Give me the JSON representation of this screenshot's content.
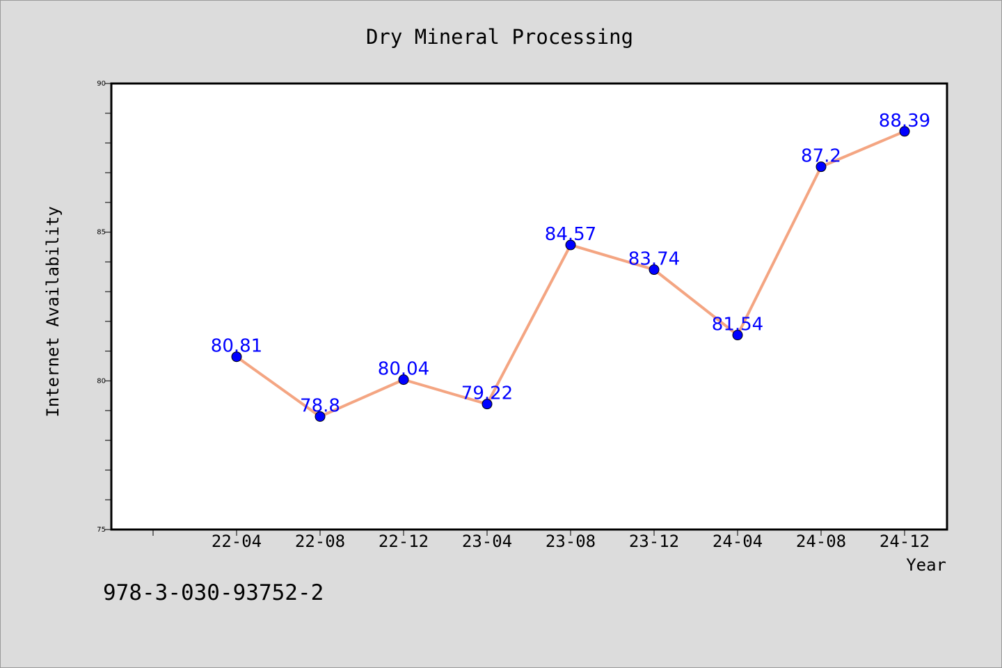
{
  "chart_data": {
    "type": "line",
    "title": "Dry Mineral Processing",
    "xlabel": "Year",
    "ylabel": "Internet Availability",
    "categories": [
      "22-04",
      "22-08",
      "22-12",
      "23-04",
      "23-08",
      "23-12",
      "24-04",
      "24-08",
      "24-12"
    ],
    "series": [
      {
        "values": [
          80.81,
          78.8,
          80.04,
          79.22,
          84.57,
          83.74,
          81.54,
          87.2,
          88.39
        ],
        "labels": [
          "80.81",
          "78.8",
          "80.04",
          "79.22",
          "84.57",
          "83.74",
          "81.54",
          "87.2",
          "88.39"
        ],
        "line_color": "#f4a582",
        "marker_color": "#0000ff"
      }
    ],
    "ylim": [
      75,
      90
    ],
    "yticks": [
      75,
      80,
      85,
      90
    ],
    "ytick_labels": [
      "75",
      "80",
      "85",
      "90"
    ],
    "grid": false,
    "label_color": "#0000ff"
  },
  "footer_text": "978-3-030-93752-2"
}
